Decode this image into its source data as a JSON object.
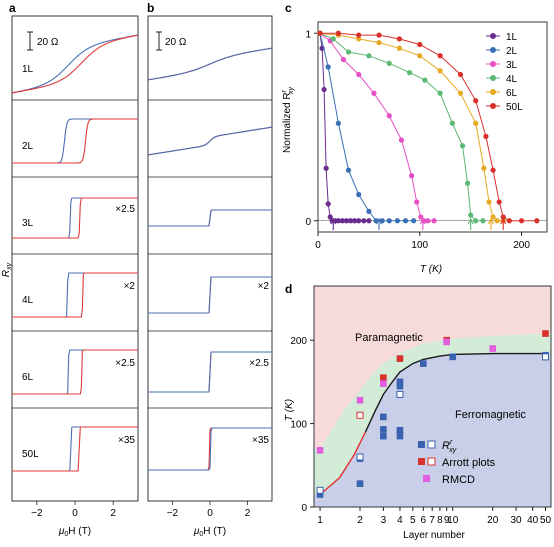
{
  "panel_labels": {
    "a": "a",
    "b": "b",
    "c": "c",
    "d": "d"
  },
  "panels_ab": {
    "scalebar_label": "20 Ω",
    "y_axis_label": "R",
    "y_axis_label_sub": "xy",
    "x_axis_label_mu": "μ",
    "x_axis_label_sub": "0",
    "x_axis_label_rest": "H (T)",
    "x_ticks": [
      "−2",
      "0",
      "2"
    ],
    "rows": [
      {
        "layer": "1L",
        "mult_a": "",
        "mult_b": ""
      },
      {
        "layer": "2L",
        "mult_a": "",
        "mult_b": ""
      },
      {
        "layer": "3L",
        "mult_a": "×2.5",
        "mult_b": ""
      },
      {
        "layer": "4L",
        "mult_a": "×2",
        "mult_b": "×2"
      },
      {
        "layer": "6L",
        "mult_a": "×2.5",
        "mult_b": "×2.5"
      },
      {
        "layer": "50L",
        "mult_a": "×35",
        "mult_b": "×35"
      }
    ],
    "colors": {
      "sweep_up": "#4a6fb5",
      "sweep_down": "#e03a3a"
    }
  },
  "chart_data": [
    {
      "id": "c",
      "type": "line",
      "title": "",
      "xlabel": "T (K)",
      "ylabel_main": "Normalized R",
      "ylabel_sup": "r",
      "ylabel_sub": "xy",
      "xlim": [
        0,
        225
      ],
      "ylim": [
        -0.06,
        1.06
      ],
      "x_ticks": [
        0,
        100,
        200
      ],
      "y_ticks": [
        0,
        1
      ],
      "series": [
        {
          "name": "1L",
          "color": "#6a2c8e",
          "arrow_T": 15,
          "points": [
            [
              2,
              1.0
            ],
            [
              4,
              0.92
            ],
            [
              6,
              0.7
            ],
            [
              8,
              0.28
            ],
            [
              10,
              0.09
            ],
            [
              12,
              0.02
            ],
            [
              14,
              0.0
            ],
            [
              17,
              0.0
            ],
            [
              20,
              0.0
            ],
            [
              24,
              0.0
            ],
            [
              28,
              0.0
            ],
            [
              32,
              0.0
            ],
            [
              36,
              0.0
            ],
            [
              40,
              0.0
            ],
            [
              45,
              0.0
            ],
            [
              50,
              0.0
            ]
          ]
        },
        {
          "name": "2L",
          "color": "#3a6fb5",
          "arrow_T": 60,
          "points": [
            [
              2,
              1.0
            ],
            [
              10,
              0.82
            ],
            [
              20,
              0.52
            ],
            [
              30,
              0.27
            ],
            [
              40,
              0.14
            ],
            [
              50,
              0.05
            ],
            [
              57,
              0.0
            ],
            [
              63,
              0.0
            ],
            [
              70,
              0.0
            ],
            [
              78,
              0.0
            ],
            [
              86,
              0.0
            ],
            [
              94,
              0.0
            ]
          ]
        },
        {
          "name": "3L",
          "color": "#e44fc6",
          "arrow_T": 103,
          "points": [
            [
              2,
              1.0
            ],
            [
              12,
              0.96
            ],
            [
              25,
              0.86
            ],
            [
              40,
              0.78
            ],
            [
              55,
              0.68
            ],
            [
              70,
              0.56
            ],
            [
              82,
              0.43
            ],
            [
              92,
              0.24
            ],
            [
              97,
              0.1
            ],
            [
              101,
              0.02
            ],
            [
              104,
              0.0
            ],
            [
              108,
              0.0
            ],
            [
              114,
              0.0
            ]
          ]
        },
        {
          "name": "4L",
          "color": "#5cb872",
          "arrow_T": 150,
          "points": [
            [
              2,
              1.0
            ],
            [
              15,
              0.97
            ],
            [
              30,
              0.9
            ],
            [
              50,
              0.88
            ],
            [
              70,
              0.84
            ],
            [
              90,
              0.79
            ],
            [
              105,
              0.75
            ],
            [
              120,
              0.68
            ],
            [
              132,
              0.52
            ],
            [
              142,
              0.4
            ],
            [
              147,
              0.2
            ],
            [
              150,
              0.03
            ],
            [
              155,
              0.0
            ],
            [
              162,
              0.0
            ]
          ]
        },
        {
          "name": "6L",
          "color": "#e6a920",
          "arrow_T": 170,
          "points": [
            [
              2,
              1.0
            ],
            [
              20,
              0.99
            ],
            [
              40,
              0.97
            ],
            [
              60,
              0.95
            ],
            [
              80,
              0.92
            ],
            [
              100,
              0.88
            ],
            [
              120,
              0.8
            ],
            [
              140,
              0.68
            ],
            [
              155,
              0.52
            ],
            [
              163,
              0.28
            ],
            [
              168,
              0.1
            ],
            [
              172,
              0.02
            ],
            [
              176,
              0.0
            ],
            [
              182,
              0.0
            ]
          ]
        },
        {
          "name": "50L",
          "color": "#d9302c",
          "arrow_T": 182,
          "points": [
            [
              2,
              1.0
            ],
            [
              20,
              1.0
            ],
            [
              40,
              0.99
            ],
            [
              60,
              0.99
            ],
            [
              80,
              0.97
            ],
            [
              100,
              0.94
            ],
            [
              120,
              0.88
            ],
            [
              140,
              0.78
            ],
            [
              155,
              0.64
            ],
            [
              165,
              0.45
            ],
            [
              172,
              0.27
            ],
            [
              178,
              0.1
            ],
            [
              182,
              0.02
            ],
            [
              188,
              0.0
            ],
            [
              200,
              0.0
            ],
            [
              215,
              0.0
            ]
          ]
        }
      ]
    },
    {
      "id": "d",
      "type": "scatter",
      "title": "",
      "xlabel": "Layer number",
      "ylabel": "T (K)",
      "xscale": "log",
      "xlim": [
        0.9,
        55
      ],
      "ylim": [
        0,
        265
      ],
      "x_ticks": [
        1,
        2,
        3,
        4,
        5,
        6,
        7,
        8,
        9,
        10,
        20,
        30,
        40,
        50
      ],
      "x_tick_labels": [
        "1",
        "2",
        "3",
        "4",
        "5",
        "6",
        "7",
        "8",
        "9",
        "10",
        "20",
        "30",
        "40",
        "50"
      ],
      "y_ticks": [
        0,
        100,
        200
      ],
      "region_labels": {
        "paramagnetic": "Paramagnetic",
        "ferromagnetic": "Ferromagnetic"
      },
      "region_colors": {
        "paramagnetic": "#f7dada",
        "ferromagnetic": "#c9cfe8",
        "mixed": "#d3ecd8"
      },
      "boundary_curve": {
        "color_top": "#1a1a1a",
        "color_low": "#e03030",
        "points": [
          [
            1,
            15
          ],
          [
            1.4,
            35
          ],
          [
            1.8,
            62
          ],
          [
            2.2,
            90
          ],
          [
            2.6,
            115
          ],
          [
            3,
            135
          ],
          [
            3.5,
            150
          ],
          [
            4,
            162
          ],
          [
            5,
            172
          ],
          [
            6,
            177
          ],
          [
            8,
            181
          ],
          [
            10,
            183
          ],
          [
            20,
            184
          ],
          [
            50,
            184
          ]
        ]
      },
      "green_upper": [
        [
          1,
          70
        ],
        [
          1.5,
          115
        ],
        [
          2,
          140
        ],
        [
          2.5,
          160
        ],
        [
          3,
          172
        ],
        [
          4,
          185
        ],
        [
          6,
          196
        ],
        [
          10,
          202
        ],
        [
          20,
          205
        ],
        [
          50,
          208
        ]
      ],
      "legend": [
        {
          "label_main": "R",
          "label_sup": "r",
          "label_sub": "xy",
          "marker": "square-pair",
          "color": "#3a62b0"
        },
        {
          "label_main": "Arrott plots",
          "marker": "square-pair",
          "color": "#d9302c"
        },
        {
          "label_main": "RMCD",
          "marker": "square",
          "color": "#e25de0"
        }
      ],
      "series": [
        {
          "name": "Rxy",
          "color": "#3a62b0",
          "open": false,
          "points": [
            [
              1,
              15
            ],
            [
              2,
              28
            ],
            [
              2,
              58
            ],
            [
              3,
              85
            ],
            [
              3,
              93
            ],
            [
              3,
              108
            ],
            [
              4,
              85
            ],
            [
              4,
              92
            ],
            [
              4,
              145
            ],
            [
              4,
              150
            ],
            [
              6,
              172
            ],
            [
              10,
              180
            ],
            [
              50,
              182
            ]
          ]
        },
        {
          "name": "Rxy-open",
          "color": "#3a62b0",
          "open": true,
          "points": [
            [
              1,
              20
            ],
            [
              2,
              60
            ],
            [
              4,
              135
            ],
            [
              50,
              180
            ]
          ]
        },
        {
          "name": "Arrott plots",
          "color": "#d9302c",
          "open": false,
          "points": [
            [
              3,
              155
            ],
            [
              4,
              178
            ],
            [
              9,
              200
            ],
            [
              50,
              208
            ]
          ]
        },
        {
          "name": "Arrott plots-open",
          "color": "#d9302c",
          "open": true,
          "points": [
            [
              2,
              110
            ]
          ]
        },
        {
          "name": "RMCD",
          "color": "#e25de0",
          "open": false,
          "points": [
            [
              1,
              68
            ],
            [
              2,
              128
            ],
            [
              3,
              148
            ],
            [
              9,
              198
            ],
            [
              20,
              190
            ]
          ]
        }
      ]
    }
  ]
}
